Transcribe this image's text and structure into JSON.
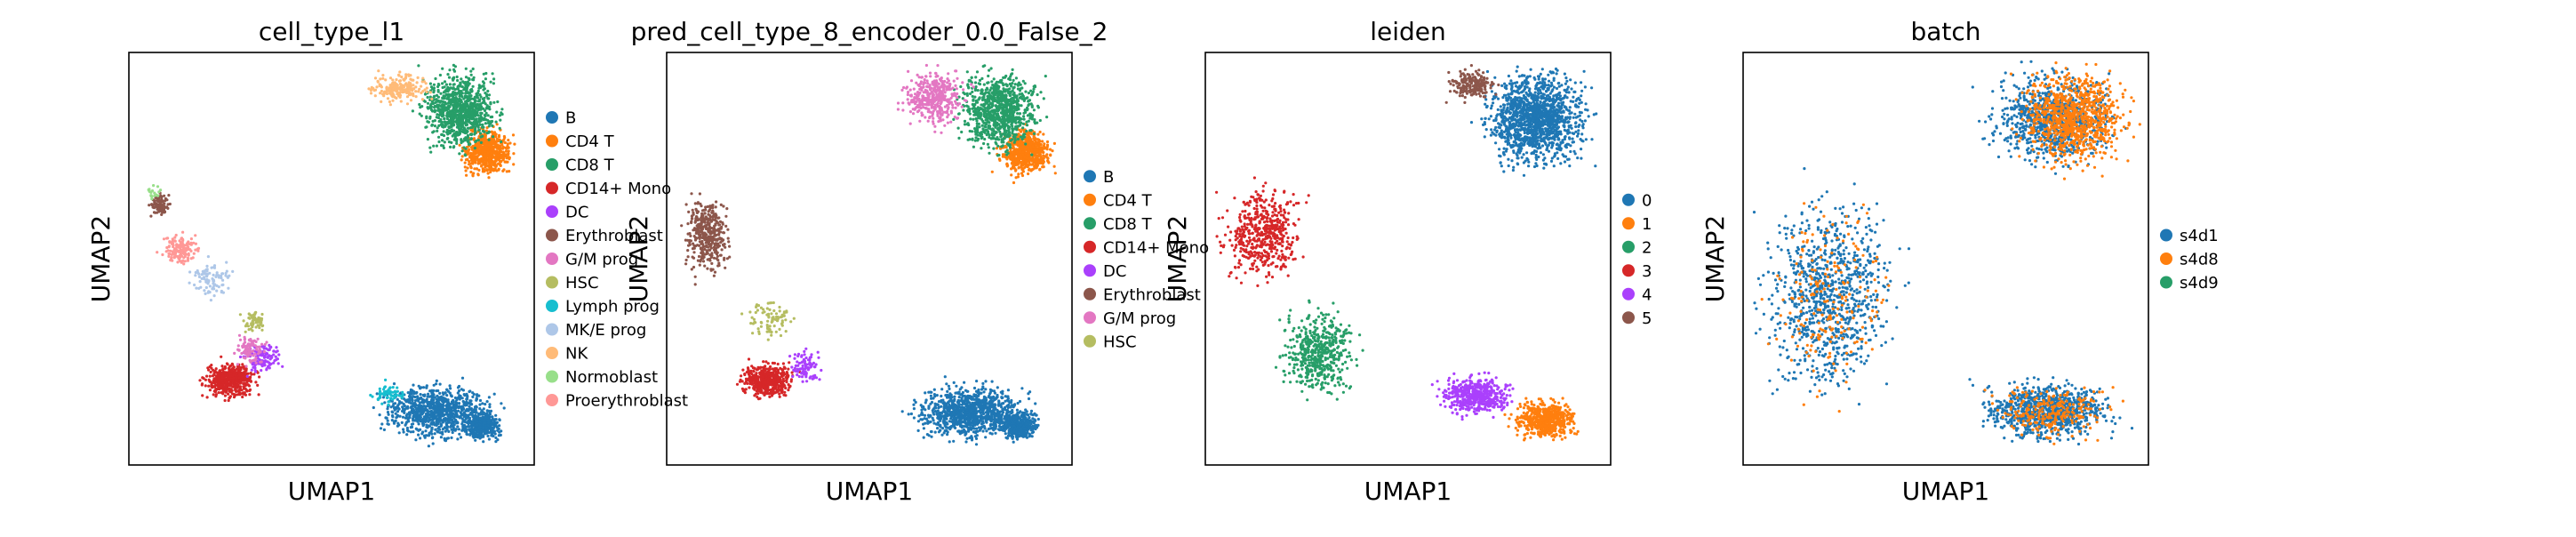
{
  "figure": {
    "background": "#ffffff"
  },
  "chart_data": [
    {
      "type": "scatter",
      "title": "cell_type_l1",
      "xlabel": "UMAP1",
      "ylabel": "UMAP2",
      "legend": {
        "placement": "right",
        "labels": [
          "B",
          "CD4 T",
          "CD8 T",
          "CD14+ Mono",
          "DC",
          "Erythroblast",
          "G/M prog",
          "HSC",
          "Lymph prog",
          "MK/E prog",
          "NK",
          "Normoblast",
          "Proerythroblast"
        ]
      },
      "series": [
        {
          "name": "B",
          "color": "#1f77b4",
          "clusters": [
            {
              "x": [
                0.62,
                0.9
              ],
              "y": [
                0.06,
                0.2
              ],
              "n": 900
            },
            {
              "x": [
                0.82,
                0.92
              ],
              "y": [
                0.06,
                0.13
              ],
              "n": 400
            }
          ]
        },
        {
          "name": "CD4 T",
          "color": "#ff7f0e",
          "clusters": [
            {
              "x": [
                0.82,
                0.95
              ],
              "y": [
                0.7,
                0.82
              ],
              "n": 600
            }
          ]
        },
        {
          "name": "CD8 T",
          "color": "#279e68",
          "clusters": [
            {
              "x": [
                0.72,
                0.92
              ],
              "y": [
                0.76,
                0.96
              ],
              "n": 900
            }
          ]
        },
        {
          "name": "CD14+ Mono",
          "color": "#d62728",
          "clusters": [
            {
              "x": [
                0.18,
                0.32
              ],
              "y": [
                0.16,
                0.25
              ],
              "n": 500
            }
          ]
        },
        {
          "name": "DC",
          "color": "#aa40fc",
          "clusters": [
            {
              "x": [
                0.28,
                0.38
              ],
              "y": [
                0.22,
                0.3
              ],
              "n": 120
            }
          ]
        },
        {
          "name": "Erythroblast",
          "color": "#8c564b",
          "clusters": [
            {
              "x": [
                0.05,
                0.1
              ],
              "y": [
                0.6,
                0.66
              ],
              "n": 90
            }
          ]
        },
        {
          "name": "G/M prog",
          "color": "#e377c2",
          "clusters": [
            {
              "x": [
                0.26,
                0.34
              ],
              "y": [
                0.24,
                0.32
              ],
              "n": 90
            }
          ]
        },
        {
          "name": "HSC",
          "color": "#b5bd61",
          "clusters": [
            {
              "x": [
                0.28,
                0.34
              ],
              "y": [
                0.32,
                0.38
              ],
              "n": 60
            }
          ]
        },
        {
          "name": "Lymph prog",
          "color": "#17becf",
          "clusters": [
            {
              "x": [
                0.6,
                0.68
              ],
              "y": [
                0.14,
                0.2
              ],
              "n": 60
            }
          ]
        },
        {
          "name": "MK/E prog",
          "color": "#aec7e8",
          "clusters": [
            {
              "x": [
                0.14,
                0.26
              ],
              "y": [
                0.4,
                0.5
              ],
              "n": 90
            }
          ]
        },
        {
          "name": "NK",
          "color": "#ffbb78",
          "clusters": [
            {
              "x": [
                0.6,
                0.74
              ],
              "y": [
                0.88,
                0.95
              ],
              "n": 200
            }
          ]
        },
        {
          "name": "Normoblast",
          "color": "#98df8a",
          "clusters": [
            {
              "x": [
                0.04,
                0.08
              ],
              "y": [
                0.64,
                0.68
              ],
              "n": 20
            }
          ]
        },
        {
          "name": "Proerythroblast",
          "color": "#ff9896",
          "clusters": [
            {
              "x": [
                0.08,
                0.18
              ],
              "y": [
                0.48,
                0.56
              ],
              "n": 150
            }
          ]
        }
      ]
    },
    {
      "type": "scatter",
      "title": "pred_cell_type_8_encoder_0.0_False_2",
      "xlabel": "UMAP1",
      "ylabel": "UMAP2",
      "legend": {
        "placement": "right",
        "labels": [
          "B",
          "CD4 T",
          "CD8 T",
          "CD14+ Mono",
          "DC",
          "Erythroblast",
          "G/M prog",
          "HSC"
        ]
      },
      "series": [
        {
          "name": "B",
          "color": "#1f77b4",
          "clusters": [
            {
              "x": [
                0.6,
                0.9
              ],
              "y": [
                0.06,
                0.2
              ],
              "n": 1000
            },
            {
              "x": [
                0.82,
                0.92
              ],
              "y": [
                0.06,
                0.13
              ],
              "n": 400
            }
          ]
        },
        {
          "name": "CD4 T",
          "color": "#ff7f0e",
          "clusters": [
            {
              "x": [
                0.82,
                0.95
              ],
              "y": [
                0.7,
                0.82
              ],
              "n": 600
            }
          ]
        },
        {
          "name": "CD8 T",
          "color": "#279e68",
          "clusters": [
            {
              "x": [
                0.72,
                0.92
              ],
              "y": [
                0.76,
                0.96
              ],
              "n": 900
            }
          ]
        },
        {
          "name": "CD14+ Mono",
          "color": "#d62728",
          "clusters": [
            {
              "x": [
                0.18,
                0.32
              ],
              "y": [
                0.16,
                0.25
              ],
              "n": 500
            }
          ]
        },
        {
          "name": "DC",
          "color": "#aa40fc",
          "clusters": [
            {
              "x": [
                0.3,
                0.38
              ],
              "y": [
                0.2,
                0.28
              ],
              "n": 90
            }
          ]
        },
        {
          "name": "Erythroblast",
          "color": "#8c564b",
          "clusters": [
            {
              "x": [
                0.04,
                0.16
              ],
              "y": [
                0.46,
                0.66
              ],
              "n": 400
            }
          ]
        },
        {
          "name": "G/M prog",
          "color": "#e377c2",
          "clusters": [
            {
              "x": [
                0.58,
                0.74
              ],
              "y": [
                0.82,
                0.96
              ],
              "n": 400
            }
          ]
        },
        {
          "name": "HSC",
          "color": "#b5bd61",
          "clusters": [
            {
              "x": [
                0.18,
                0.32
              ],
              "y": [
                0.3,
                0.4
              ],
              "n": 90
            }
          ]
        }
      ]
    },
    {
      "type": "scatter",
      "title": "leiden",
      "xlabel": "UMAP1",
      "ylabel": "UMAP2",
      "legend": {
        "placement": "right",
        "labels": [
          "0",
          "1",
          "2",
          "3",
          "4",
          "5"
        ]
      },
      "series": [
        {
          "name": "0",
          "color": "#1f77b4",
          "clusters": [
            {
              "x": [
                0.68,
                0.95
              ],
              "y": [
                0.72,
                0.96
              ],
              "n": 1400
            }
          ]
        },
        {
          "name": "1",
          "color": "#ff7f0e",
          "clusters": [
            {
              "x": [
                0.76,
                0.92
              ],
              "y": [
                0.06,
                0.16
              ],
              "n": 600
            }
          ]
        },
        {
          "name": "2",
          "color": "#279e68",
          "clusters": [
            {
              "x": [
                0.18,
                0.38
              ],
              "y": [
                0.16,
                0.38
              ],
              "n": 500
            }
          ]
        },
        {
          "name": "3",
          "color": "#d62728",
          "clusters": [
            {
              "x": [
                0.04,
                0.24
              ],
              "y": [
                0.44,
                0.68
              ],
              "n": 500
            }
          ]
        },
        {
          "name": "4",
          "color": "#aa40fc",
          "clusters": [
            {
              "x": [
                0.58,
                0.76
              ],
              "y": [
                0.12,
                0.22
              ],
              "n": 500
            }
          ]
        },
        {
          "name": "5",
          "color": "#8c564b",
          "clusters": [
            {
              "x": [
                0.6,
                0.72
              ],
              "y": [
                0.88,
                0.96
              ],
              "n": 200
            }
          ]
        }
      ]
    },
    {
      "type": "scatter",
      "title": "batch",
      "xlabel": "UMAP1",
      "ylabel": "UMAP2",
      "legend": {
        "placement": "right",
        "labels": [
          "s4d1",
          "s4d8",
          "s4d9"
        ]
      },
      "series": [
        {
          "name": "s4d1",
          "color": "#1f77b4",
          "clusters": [
            {
              "x": [
                0.6,
                0.92
              ],
              "y": [
                0.72,
                0.96
              ],
              "n": 900
            },
            {
              "x": [
                0.58,
                0.92
              ],
              "y": [
                0.06,
                0.2
              ],
              "n": 900
            },
            {
              "x": [
                0.04,
                0.38
              ],
              "y": [
                0.16,
                0.66
              ],
              "n": 900
            }
          ]
        },
        {
          "name": "s4d8",
          "color": "#ff7f0e",
          "clusters": [
            {
              "x": [
                0.68,
                0.95
              ],
              "y": [
                0.72,
                0.96
              ],
              "n": 900
            },
            {
              "x": [
                0.6,
                0.92
              ],
              "y": [
                0.06,
                0.2
              ],
              "n": 250
            },
            {
              "x": [
                0.04,
                0.38
              ],
              "y": [
                0.16,
                0.66
              ],
              "n": 200
            }
          ]
        },
        {
          "name": "s4d9",
          "color": "#279e68",
          "clusters": []
        }
      ]
    }
  ]
}
